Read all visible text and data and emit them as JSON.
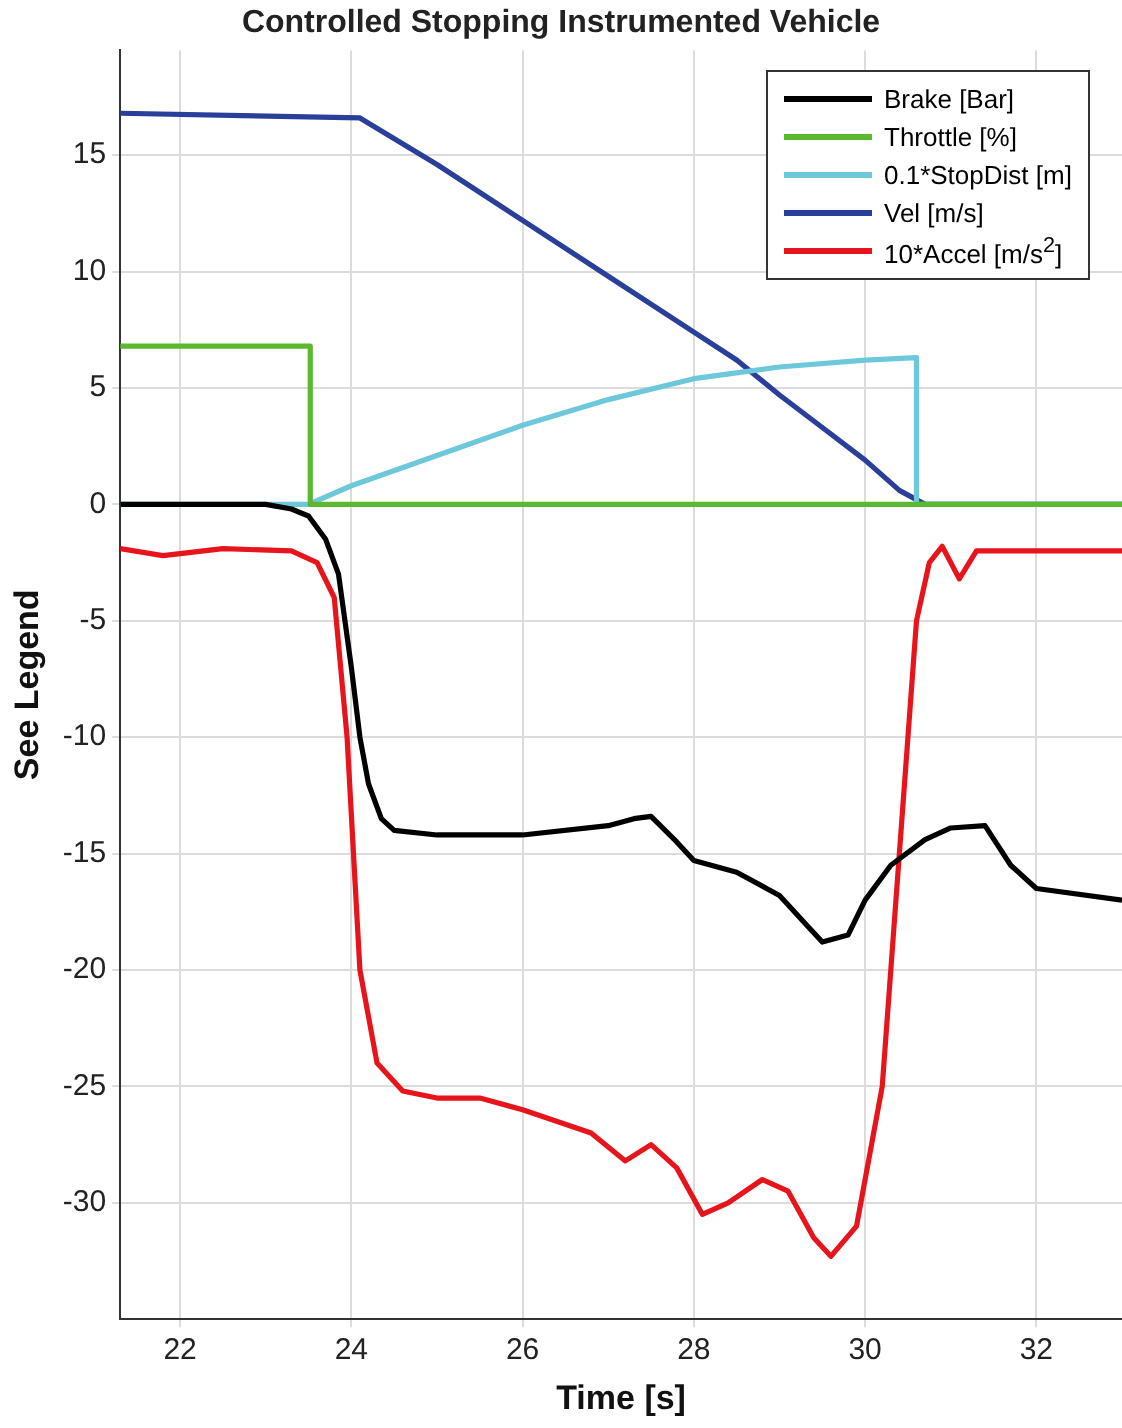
{
  "chart_data": {
    "type": "line",
    "title": "Controlled Stopping Instrumented Vehicle",
    "xlabel": "Time [s]",
    "ylabel": "See Legend",
    "xlim": [
      21.3,
      33
    ],
    "ylim": [
      -35,
      19.5
    ],
    "xticks": [
      22,
      24,
      26,
      28,
      30,
      32
    ],
    "yticks": [
      -30,
      -25,
      -20,
      -15,
      -10,
      -5,
      0,
      5,
      10,
      15
    ],
    "grid": true,
    "legend": "top right",
    "series": [
      {
        "name": "Brake [Bar]",
        "color": "#000000",
        "x": [
          21.3,
          23,
          23.3,
          23.5,
          23.7,
          23.85,
          24,
          24.1,
          24.2,
          24.35,
          24.5,
          25,
          26,
          27,
          27.3,
          27.5,
          27.8,
          28,
          28.5,
          29,
          29.3,
          29.5,
          29.8,
          30,
          30.3,
          30.7,
          31,
          31.4,
          31.7,
          32,
          33
        ],
        "values": [
          0,
          0,
          -0.2,
          -0.5,
          -1.5,
          -3,
          -7,
          -10,
          -12,
          -13.5,
          -14,
          -14.2,
          -14.2,
          -13.8,
          -13.5,
          -13.4,
          -14.5,
          -15.3,
          -15.8,
          -16.8,
          -18,
          -18.8,
          -18.5,
          -17,
          -15.5,
          -14.4,
          -13.9,
          -13.8,
          -15.5,
          -16.5,
          -17
        ]
      },
      {
        "name": "Throttle [%]",
        "color": "#5cb82e",
        "x": [
          21.3,
          23.52,
          23.52,
          33
        ],
        "values": [
          6.8,
          6.8,
          0,
          0
        ]
      },
      {
        "name": "0.1*StopDist [m]",
        "color": "#6ec8dc",
        "x": [
          21.3,
          23.5,
          24,
          25,
          26,
          27,
          28,
          29,
          30,
          30.6,
          30.6,
          33
        ],
        "values": [
          0,
          0,
          0.8,
          2.1,
          3.4,
          4.5,
          5.4,
          5.9,
          6.2,
          6.3,
          0,
          0
        ]
      },
      {
        "name": "Vel [m/s]",
        "color": "#2a3f9a",
        "x": [
          21.3,
          24.1,
          25,
          26,
          27,
          28,
          28.5,
          29,
          29.5,
          30,
          30.4,
          30.7,
          33
        ],
        "values": [
          16.8,
          16.6,
          14.6,
          12.2,
          9.8,
          7.4,
          6.2,
          4.7,
          3.3,
          1.9,
          0.6,
          0,
          0
        ]
      },
      {
        "name": "10*Accel [m/s$^{2}$]",
        "color": "#e8141c",
        "x": [
          21.3,
          21.8,
          22.5,
          23.3,
          23.6,
          23.8,
          23.95,
          24.1,
          24.3,
          24.6,
          25,
          25.5,
          26,
          26.8,
          27.2,
          27.5,
          27.8,
          28.1,
          28.4,
          28.8,
          29.1,
          29.4,
          29.6,
          29.9,
          30.2,
          30.4,
          30.6,
          30.75,
          30.9,
          31.1,
          31.3,
          33
        ],
        "values": [
          -1.9,
          -2.2,
          -1.9,
          -2,
          -2.5,
          -4,
          -10,
          -20,
          -24,
          -25.2,
          -25.5,
          -25.5,
          -26,
          -27,
          -28.2,
          -27.5,
          -28.5,
          -30.5,
          -30,
          -29,
          -29.5,
          -31.5,
          -32.3,
          -31,
          -25,
          -15,
          -5,
          -2.5,
          -1.8,
          -3.2,
          -2,
          -2
        ]
      }
    ]
  }
}
